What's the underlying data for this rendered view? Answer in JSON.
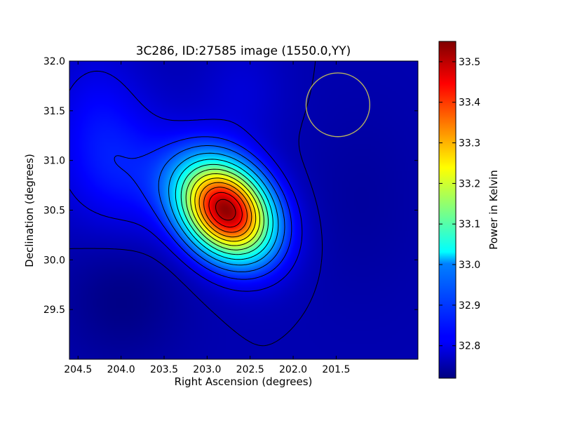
{
  "chart_data": {
    "type": "heatmap",
    "title": "3C286, ID:27585 image (1550.0,YY)",
    "xlabel": "Right Ascension (degrees)",
    "ylabel": "Declination (degrees)",
    "colorbar_label": "Power in Kelvin",
    "colormap": "jet",
    "x_axis_reversed": true,
    "xlim": [
      204.6,
      200.55
    ],
    "ylim": [
      29.0,
      32.0
    ],
    "zlim": [
      32.72,
      33.55
    ],
    "x_ticks": [
      "204.5",
      "204.0",
      "203.5",
      "203.0",
      "202.5",
      "202.0",
      "201.5"
    ],
    "y_ticks": [
      "32.0",
      "31.5",
      "31.0",
      "30.5",
      "30.0",
      "29.5"
    ],
    "colorbar_ticks": [
      "33.5",
      "33.4",
      "33.3",
      "33.2",
      "33.1",
      "33.0",
      "32.9",
      "32.8"
    ],
    "peak": {
      "ra": 202.78,
      "dec": 30.5,
      "value": 33.53
    },
    "beam_circle": {
      "ra": 201.48,
      "dec": 31.56,
      "radius_deg": 0.37,
      "color": "#b5b060"
    },
    "contour_levels": [
      32.76,
      32.8,
      32.85,
      32.9,
      32.96,
      33.02,
      33.08,
      33.14,
      33.2,
      33.26,
      33.32,
      33.38,
      33.44,
      33.5
    ],
    "contour_color": "#000000"
  }
}
